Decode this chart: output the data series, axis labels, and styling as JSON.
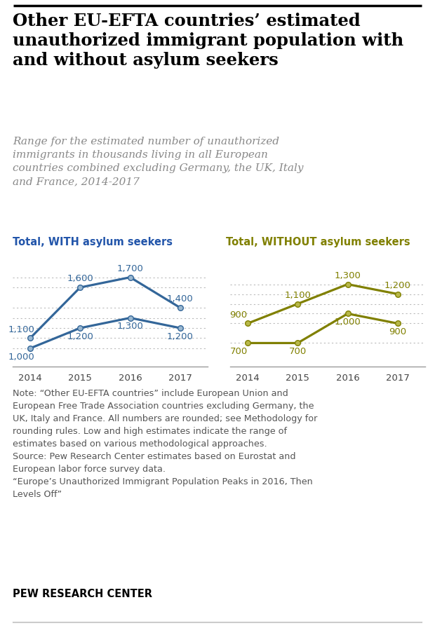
{
  "title": "Other EU-EFTA countries’ estimated\nunauthorized immigrant population with\nand without asylum seekers",
  "subtitle": "Range for the estimated number of unauthorized\nimmigrants in thousands living in all European\ncountries combined excluding Germany, the UK, Italy\nand France, 2014-2017",
  "years": [
    2014,
    2015,
    2016,
    2017
  ],
  "with_high": [
    1100,
    1600,
    1700,
    1400
  ],
  "with_low": [
    1000,
    1200,
    1300,
    1200
  ],
  "without_high": [
    900,
    1100,
    1300,
    1200
  ],
  "without_low": [
    700,
    700,
    1000,
    900
  ],
  "left_label": "Total, WITH asylum seekers",
  "right_label": "Total, WITHOUT asylum seekers",
  "with_color": "#336699",
  "without_color": "#808000",
  "note_text": "Note: “Other EU-EFTA countries” include European Union and\nEuropean Free Trade Association countries excluding Germany, the\nUK, Italy and France. All numbers are rounded; see Methodology for\nrounding rules. Low and high estimates indicate the range of\nestimates based on various methodological approaches.\nSource: Pew Research Center estimates based on Eurostat and\nEuropean labor force survey data.\n“Europe’s Unauthorized Immigrant Population Peaks in 2016, Then\nLevels Off”",
  "footer": "PEW RESEARCH CENTER",
  "bg_color": "#ffffff",
  "title_color": "#000000",
  "subtitle_color": "#888888",
  "note_color": "#555555",
  "label_color_left": "#2255aa",
  "label_color_right": "#808000"
}
